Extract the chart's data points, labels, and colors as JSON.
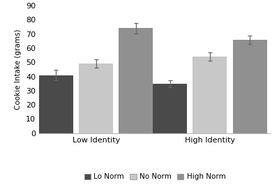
{
  "groups": [
    "Low Identity",
    "High Identity"
  ],
  "conditions": [
    "Lo Norm",
    "No Norm",
    "High Norm"
  ],
  "values": [
    [
      41.0,
      49.0,
      74.0
    ],
    [
      35.0,
      54.0,
      66.0
    ]
  ],
  "errors": [
    [
      3.5,
      3.0,
      3.5
    ],
    [
      2.5,
      3.0,
      3.0
    ]
  ],
  "bar_colors": [
    "#4a4a4a",
    "#c8c8c8",
    "#909090"
  ],
  "ylabel": "Cookie Intake (grams)",
  "ylim": [
    0,
    90
  ],
  "yticks": [
    0,
    10,
    20,
    30,
    40,
    50,
    60,
    70,
    80,
    90
  ],
  "bar_width": 0.18,
  "background_color": "#ffffff",
  "legend_labels": [
    "Lo Norm",
    "No Norm",
    "High Norm"
  ],
  "edge_color": "#aaaaaa",
  "error_color": "#666666"
}
